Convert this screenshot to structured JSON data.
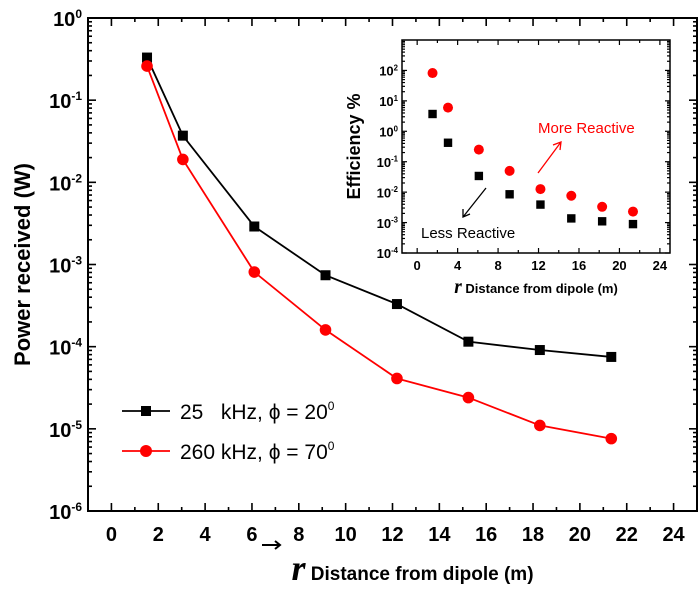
{
  "chart_data": [
    {
      "type": "line",
      "xlabel_symbol": "r",
      "xlabel": "Distance from dipole (m)",
      "ylabel": "Power received (W)",
      "xlim": [
        -1,
        25
      ],
      "ylim": [
        1e-06,
        1
      ],
      "yscale": "log",
      "xticks": [
        0,
        2,
        4,
        6,
        8,
        10,
        12,
        14,
        16,
        18,
        20,
        22,
        24
      ],
      "yticks": [
        1,
        0.1,
        0.01,
        0.001,
        0.0001,
        1e-05,
        1e-06
      ],
      "ytick_exponents": [
        "0",
        "-1",
        "-2",
        "-3",
        "-4",
        "-5",
        "-6"
      ],
      "grid": false,
      "legend_placement": "bottom-left",
      "x": [
        1.52,
        3.05,
        6.1,
        9.14,
        12.19,
        15.24,
        18.29,
        21.34
      ],
      "series": [
        {
          "name": "25   kHz, ϕ = 20",
          "name_sup": "0",
          "color": "#000000",
          "marker": "square",
          "values": [
            0.33,
            0.037,
            0.0029,
            0.00074,
            0.00033,
            0.000115,
            9.1e-05,
            7.5e-05
          ]
        },
        {
          "name": "260 kHz, ϕ = 70",
          "name_sup": "0",
          "color": "#ff0000",
          "marker": "circle",
          "values": [
            0.26,
            0.019,
            0.00081,
            0.00016,
            4.1e-05,
            2.4e-05,
            1.1e-05,
            7.6e-06
          ]
        }
      ]
    },
    {
      "type": "scatter",
      "xlabel_symbol": "r",
      "xlabel": "Distance from dipole (m)",
      "ylabel": "Efficiency %",
      "xlim": [
        -1.5,
        25
      ],
      "ylim": [
        0.0001,
        1000
      ],
      "yscale": "log",
      "xticks": [
        0,
        4,
        8,
        12,
        16,
        20,
        24
      ],
      "yticks": [
        100,
        10,
        1,
        0.1,
        0.01,
        0.001,
        0.0001
      ],
      "ytick_exponents": [
        "2",
        "1",
        "0",
        "-1",
        "-2",
        "-3",
        "-4"
      ],
      "grid": false,
      "x": [
        1.52,
        3.05,
        6.1,
        9.14,
        12.19,
        15.24,
        18.29,
        21.34
      ],
      "series": [
        {
          "color": "#ff0000",
          "marker": "circle",
          "values": [
            82,
            6.0,
            0.25,
            0.05,
            0.0126,
            0.0076,
            0.0033,
            0.0023
          ]
        },
        {
          "color": "#000000",
          "marker": "square",
          "values": [
            3.7,
            0.42,
            0.034,
            0.0085,
            0.0039,
            0.00137,
            0.0011,
            0.00089
          ]
        }
      ],
      "annotations": [
        {
          "text": "More Reactive",
          "color": "#ff0000"
        },
        {
          "text": "Less Reactive",
          "color": "#000000"
        }
      ]
    }
  ]
}
